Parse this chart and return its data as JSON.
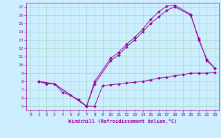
{
  "bg_color": "#cceeff",
  "line_color": "#990099",
  "grid_color": "#aaddcc",
  "xlabel": "Windchill (Refroidissement éolien,°C)",
  "xlim": [
    -0.5,
    23.5
  ],
  "ylim": [
    4.5,
    17.5
  ],
  "yticks": [
    5,
    6,
    7,
    8,
    9,
    10,
    11,
    12,
    13,
    14,
    15,
    16,
    17
  ],
  "xticks": [
    0,
    1,
    2,
    3,
    4,
    5,
    6,
    7,
    8,
    9,
    10,
    11,
    12,
    13,
    14,
    15,
    16,
    17,
    18,
    19,
    20,
    21,
    22,
    23
  ],
  "line1_x": [
    1,
    2,
    3,
    4,
    5,
    6,
    7,
    8,
    9,
    10,
    11,
    12,
    13,
    14,
    15,
    16,
    17,
    18,
    19,
    20,
    21,
    22,
    23
  ],
  "line1_y": [
    8.0,
    7.7,
    7.7,
    6.7,
    6.3,
    5.8,
    5.0,
    5.0,
    7.5,
    7.6,
    7.7,
    7.8,
    7.9,
    8.0,
    8.2,
    8.4,
    8.5,
    8.7,
    8.8,
    9.0,
    9.0,
    9.0,
    9.1
  ],
  "line2_x": [
    1,
    3,
    7,
    8,
    10,
    11,
    12,
    13,
    14,
    15,
    16,
    17,
    18,
    20,
    21,
    22,
    23
  ],
  "line2_y": [
    8.0,
    7.7,
    5.0,
    7.7,
    10.5,
    11.2,
    12.2,
    13.0,
    14.0,
    15.0,
    15.8,
    16.6,
    17.0,
    16.0,
    13.2,
    10.5,
    9.6
  ],
  "line3_x": [
    1,
    3,
    7,
    8,
    10,
    11,
    12,
    13,
    14,
    15,
    16,
    17,
    18,
    20,
    21,
    22,
    23
  ],
  "line3_y": [
    8.0,
    7.7,
    5.0,
    8.0,
    10.8,
    11.5,
    12.5,
    13.3,
    14.3,
    15.5,
    16.4,
    17.1,
    17.2,
    16.1,
    13.0,
    10.7,
    9.6
  ]
}
